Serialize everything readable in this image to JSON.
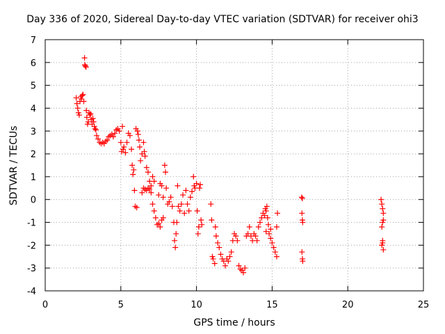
{
  "chart_data": {
    "type": "scatter",
    "title": "Day 336 of 2020, Sidereal Day-to-day VTEC variation (SDTVAR) for receiver ohi3",
    "xlabel": "GPS time / hours",
    "ylabel": "SDTVAR / TECUs",
    "xlim": [
      0,
      25
    ],
    "ylim": [
      -4,
      7
    ],
    "xticks": [
      0,
      5,
      10,
      15,
      20,
      25
    ],
    "yticks": [
      -4,
      -3,
      -2,
      -1,
      0,
      1,
      2,
      3,
      4,
      5,
      6,
      7
    ],
    "grid": true,
    "marker": "+",
    "color": "#ff0000",
    "series": [
      {
        "name": "SDTVAR",
        "points": [
          [
            2.05,
            4.45
          ],
          [
            2.1,
            4.2
          ],
          [
            2.15,
            4.0
          ],
          [
            2.2,
            3.8
          ],
          [
            2.25,
            3.7
          ],
          [
            2.3,
            4.3
          ],
          [
            2.35,
            4.5
          ],
          [
            2.4,
            4.4
          ],
          [
            2.45,
            4.55
          ],
          [
            2.5,
            4.6
          ],
          [
            2.55,
            4.3
          ],
          [
            2.6,
            6.2
          ],
          [
            2.62,
            5.9
          ],
          [
            2.65,
            5.85
          ],
          [
            2.7,
            5.8
          ],
          [
            2.72,
            3.9
          ],
          [
            2.75,
            3.6
          ],
          [
            2.8,
            3.3
          ],
          [
            2.85,
            3.4
          ],
          [
            2.9,
            3.8
          ],
          [
            2.95,
            3.7
          ],
          [
            3.0,
            3.75
          ],
          [
            3.05,
            3.5
          ],
          [
            3.1,
            3.3
          ],
          [
            3.15,
            3.55
          ],
          [
            3.2,
            3.4
          ],
          [
            3.25,
            3.2
          ],
          [
            3.3,
            3.1
          ],
          [
            3.35,
            3.05
          ],
          [
            3.4,
            2.8
          ],
          [
            3.5,
            2.65
          ],
          [
            3.6,
            2.5
          ],
          [
            3.7,
            2.45
          ],
          [
            3.8,
            2.5
          ],
          [
            3.9,
            2.45
          ],
          [
            4.0,
            2.55
          ],
          [
            4.1,
            2.6
          ],
          [
            4.2,
            2.75
          ],
          [
            4.3,
            2.8
          ],
          [
            4.4,
            2.85
          ],
          [
            4.5,
            2.75
          ],
          [
            4.6,
            2.9
          ],
          [
            4.7,
            3.05
          ],
          [
            4.8,
            3.1
          ],
          [
            4.9,
            3.0
          ],
          [
            5.0,
            2.5
          ],
          [
            5.05,
            2.1
          ],
          [
            5.1,
            3.2
          ],
          [
            5.15,
            2.2
          ],
          [
            5.2,
            2.3
          ],
          [
            5.3,
            2.05
          ],
          [
            5.4,
            2.5
          ],
          [
            5.5,
            2.9
          ],
          [
            5.6,
            2.8
          ],
          [
            5.7,
            2.2
          ],
          [
            5.75,
            1.5
          ],
          [
            5.8,
            1.1
          ],
          [
            5.85,
            1.3
          ],
          [
            5.9,
            0.4
          ],
          [
            5.95,
            -0.3
          ],
          [
            6.0,
            3.1
          ],
          [
            6.05,
            -0.35
          ],
          [
            6.1,
            3.0
          ],
          [
            6.15,
            2.85
          ],
          [
            6.2,
            2.6
          ],
          [
            6.25,
            2.3
          ],
          [
            6.3,
            1.7
          ],
          [
            6.4,
            2.0
          ],
          [
            6.5,
            2.5
          ],
          [
            6.55,
            2.1
          ],
          [
            6.6,
            1.9
          ],
          [
            6.7,
            1.4
          ],
          [
            6.8,
            1.2
          ],
          [
            6.9,
            0.8
          ],
          [
            7.0,
            0.6
          ],
          [
            7.1,
            1.0
          ],
          [
            7.2,
            0.8
          ],
          [
            6.4,
            0.3
          ],
          [
            6.5,
            0.5
          ],
          [
            6.6,
            0.45
          ],
          [
            6.7,
            0.4
          ],
          [
            6.8,
            0.5
          ],
          [
            6.9,
            0.45
          ],
          [
            7.0,
            0.3
          ],
          [
            7.1,
            -0.2
          ],
          [
            7.2,
            -0.5
          ],
          [
            7.3,
            -0.8
          ],
          [
            7.4,
            -1.1
          ],
          [
            7.5,
            -1.05
          ],
          [
            7.6,
            -1.2
          ],
          [
            7.7,
            -0.9
          ],
          [
            7.8,
            -0.8
          ],
          [
            7.5,
            0.2
          ],
          [
            7.6,
            0.7
          ],
          [
            7.7,
            0.6
          ],
          [
            7.8,
            0.1
          ],
          [
            7.9,
            1.5
          ],
          [
            7.95,
            1.2
          ],
          [
            8.0,
            0.5
          ],
          [
            8.1,
            -0.2
          ],
          [
            8.2,
            -0.1
          ],
          [
            8.3,
            0.1
          ],
          [
            8.4,
            -0.3
          ],
          [
            8.5,
            -1.0
          ],
          [
            8.55,
            -1.8
          ],
          [
            8.6,
            -2.1
          ],
          [
            8.65,
            -1.5
          ],
          [
            8.7,
            -1.0
          ],
          [
            8.75,
            0.6
          ],
          [
            8.8,
            -0.3
          ],
          [
            8.9,
            -0.5
          ],
          [
            9.0,
            -0.2
          ],
          [
            9.1,
            0.2
          ],
          [
            9.2,
            -0.6
          ],
          [
            9.3,
            0.4
          ],
          [
            9.4,
            -0.2
          ],
          [
            9.5,
            -0.5
          ],
          [
            9.6,
            0.1
          ],
          [
            9.7,
            0.35
          ],
          [
            9.8,
            1.0
          ],
          [
            9.85,
            0.6
          ],
          [
            9.9,
            0.5
          ],
          [
            10.0,
            0.7
          ],
          [
            10.05,
            -0.5
          ],
          [
            10.1,
            -1.5
          ],
          [
            10.15,
            -1.2
          ],
          [
            10.2,
            0.5
          ],
          [
            10.25,
            0.65
          ],
          [
            10.3,
            -0.9
          ],
          [
            10.35,
            -1.1
          ],
          [
            10.95,
            -0.2
          ],
          [
            11.0,
            -0.9
          ],
          [
            11.05,
            -2.5
          ],
          [
            11.1,
            -2.6
          ],
          [
            11.2,
            -2.8
          ],
          [
            11.25,
            -1.2
          ],
          [
            11.3,
            -1.6
          ],
          [
            11.4,
            -1.9
          ],
          [
            11.5,
            -2.1
          ],
          [
            11.6,
            -2.4
          ],
          [
            11.7,
            -2.6
          ],
          [
            11.8,
            -2.7
          ],
          [
            11.9,
            -2.9
          ],
          [
            12.0,
            -2.6
          ],
          [
            12.1,
            -2.7
          ],
          [
            12.2,
            -2.5
          ],
          [
            12.3,
            -2.3
          ],
          [
            12.4,
            -1.8
          ],
          [
            12.5,
            -1.5
          ],
          [
            12.6,
            -1.6
          ],
          [
            12.7,
            -1.8
          ],
          [
            12.8,
            -2.9
          ],
          [
            12.9,
            -3.05
          ],
          [
            13.0,
            -3.1
          ],
          [
            13.1,
            -3.2
          ],
          [
            13.2,
            -3.0
          ],
          [
            13.3,
            -1.6
          ],
          [
            13.4,
            -1.5
          ],
          [
            13.5,
            -1.2
          ],
          [
            13.6,
            -1.6
          ],
          [
            13.7,
            -1.8
          ],
          [
            13.8,
            -1.5
          ],
          [
            13.9,
            -1.6
          ],
          [
            14.0,
            -1.8
          ],
          [
            14.1,
            -1.2
          ],
          [
            14.2,
            -1.0
          ],
          [
            14.3,
            -0.8
          ],
          [
            14.4,
            -0.6
          ],
          [
            14.5,
            -0.7
          ],
          [
            14.55,
            -0.4
          ],
          [
            14.6,
            -1.4
          ],
          [
            14.7,
            -0.8
          ],
          [
            14.75,
            -1.1
          ],
          [
            14.8,
            -1.5
          ],
          [
            14.9,
            -1.7
          ],
          [
            15.0,
            -1.9
          ],
          [
            15.1,
            -2.1
          ],
          [
            15.2,
            -2.3
          ],
          [
            15.3,
            -2.5
          ],
          [
            15.35,
            -0.6
          ],
          [
            15.3,
            -1.2
          ],
          [
            14.9,
            -1.3
          ],
          [
            14.65,
            -0.3
          ],
          [
            14.6,
            -0.5
          ],
          [
            16.95,
            0.1
          ],
          [
            17.0,
            0.05
          ],
          [
            16.97,
            -0.6
          ],
          [
            17.0,
            -0.9
          ],
          [
            17.02,
            -1.0
          ],
          [
            16.97,
            -2.3
          ],
          [
            17.0,
            -2.6
          ],
          [
            17.02,
            -2.7
          ],
          [
            22.2,
            0.0
          ],
          [
            22.25,
            -0.2
          ],
          [
            22.3,
            -0.4
          ],
          [
            22.35,
            -0.6
          ],
          [
            22.3,
            -1.0
          ],
          [
            22.25,
            -1.2
          ],
          [
            22.35,
            -0.9
          ],
          [
            22.3,
            -1.8
          ],
          [
            22.25,
            -2.0
          ],
          [
            22.35,
            -2.2
          ],
          [
            22.3,
            -1.9
          ]
        ]
      }
    ]
  }
}
